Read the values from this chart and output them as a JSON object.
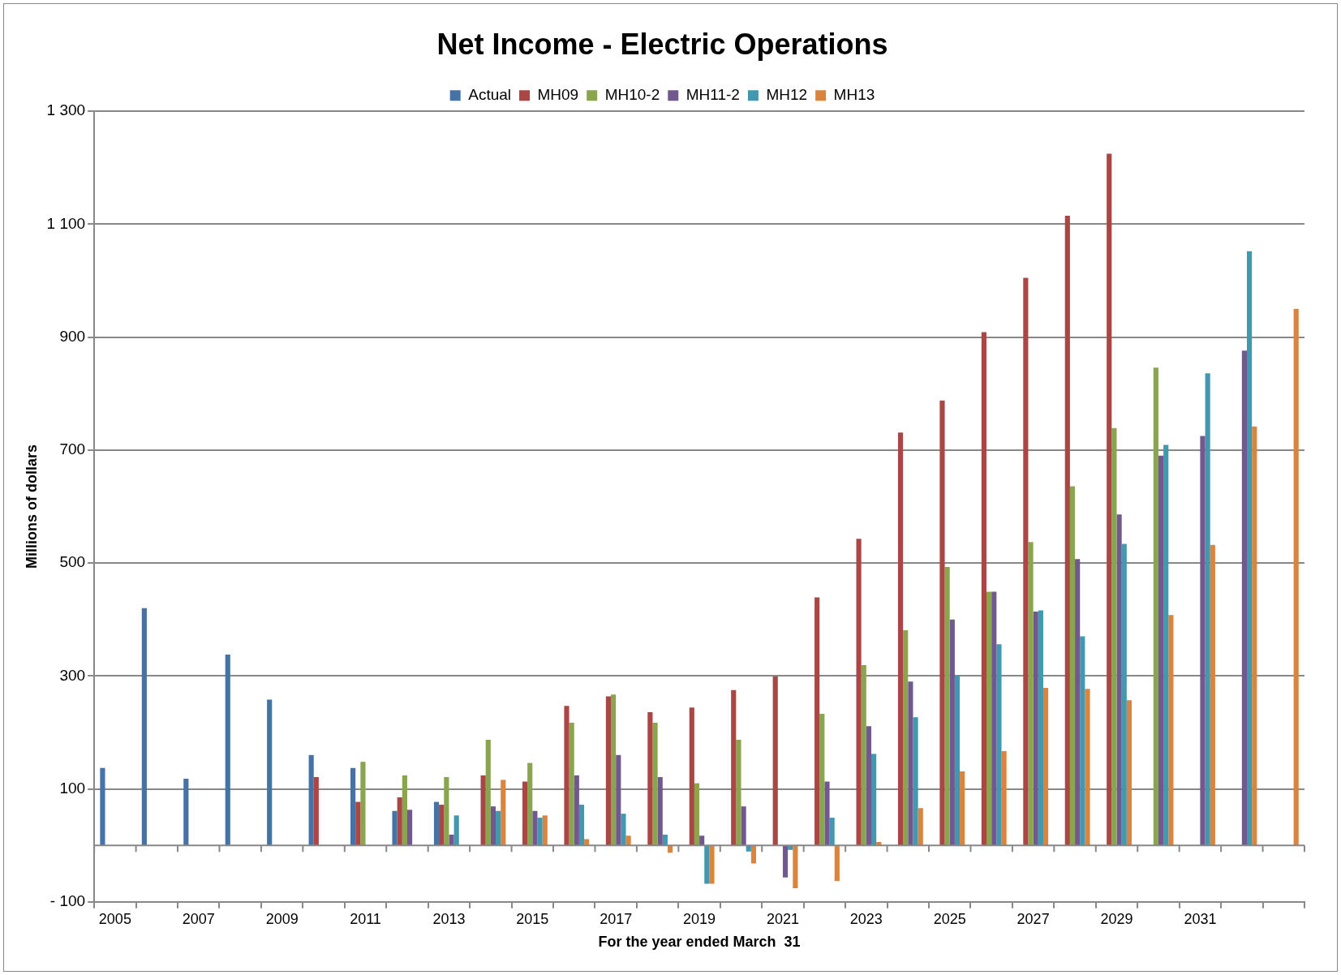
{
  "chart_data": {
    "type": "bar",
    "title": "Net Income - Electric Operations",
    "xlabel": "For the year ended March  31",
    "ylabel": "Millions of dollars",
    "categories": [
      "2005",
      null,
      "2007",
      null,
      "2009",
      null,
      "2011",
      null,
      "2013",
      null,
      "2015",
      null,
      "2017",
      null,
      "2019",
      null,
      "2021",
      null,
      "2023",
      null,
      "2025",
      null,
      "2027",
      null,
      "2029",
      null,
      "2031",
      null,
      null
    ],
    "series": [
      {
        "name": "Actual",
        "color": "#4572a7",
        "values": [
          137,
          420,
          118,
          338,
          258,
          160,
          137,
          61,
          77,
          null,
          null,
          null,
          null,
          null,
          null,
          null,
          null,
          null,
          null,
          null,
          null,
          null,
          null,
          null,
          null,
          null,
          null,
          null,
          null
        ]
      },
      {
        "name": "MH09",
        "color": "#aa4643",
        "values": [
          null,
          null,
          null,
          null,
          null,
          121,
          77,
          85,
          72,
          124,
          113,
          247,
          264,
          236,
          244,
          275,
          299,
          439,
          543,
          731,
          788,
          909,
          1005,
          1115,
          1225,
          null,
          null,
          null,
          null
        ]
      },
      {
        "name": "MH10-2",
        "color": "#89a54e",
        "values": [
          null,
          null,
          null,
          null,
          null,
          null,
          148,
          124,
          121,
          187,
          146,
          217,
          267,
          217,
          110,
          187,
          -1,
          233,
          319,
          381,
          493,
          449,
          537,
          636,
          739,
          846,
          null,
          null,
          null
        ]
      },
      {
        "name": "MH11-2",
        "color": "#71588f",
        "values": [
          null,
          null,
          null,
          null,
          null,
          null,
          null,
          63,
          19,
          69,
          61,
          124,
          160,
          121,
          17,
          69,
          -57,
          113,
          211,
          290,
          400,
          449,
          414,
          507,
          586,
          690,
          725,
          876,
          null
        ]
      },
      {
        "name": "MH12",
        "color": "#4198af",
        "values": [
          null,
          null,
          null,
          null,
          null,
          null,
          null,
          null,
          53,
          61,
          49,
          72,
          56,
          19,
          -68,
          -11,
          -8,
          49,
          162,
          227,
          301,
          356,
          416,
          370,
          534,
          709,
          836,
          1052,
          null
        ]
      },
      {
        "name": "MH13",
        "color": "#db843d",
        "values": [
          null,
          null,
          null,
          null,
          null,
          null,
          null,
          null,
          null,
          116,
          53,
          11,
          17,
          -13,
          -68,
          -32,
          -76,
          -63,
          6,
          66,
          131,
          167,
          279,
          277,
          257,
          408,
          532,
          742,
          950
        ]
      }
    ],
    "ylim": [
      -100,
      1300
    ],
    "yticks": [
      {
        "value": -100,
        "label": "- 100"
      },
      100,
      300,
      500,
      700,
      900,
      {
        "value": 1100,
        "label": "1 100"
      },
      {
        "value": 1300,
        "label": "1 300"
      }
    ],
    "grid": "y",
    "legend": "top"
  }
}
